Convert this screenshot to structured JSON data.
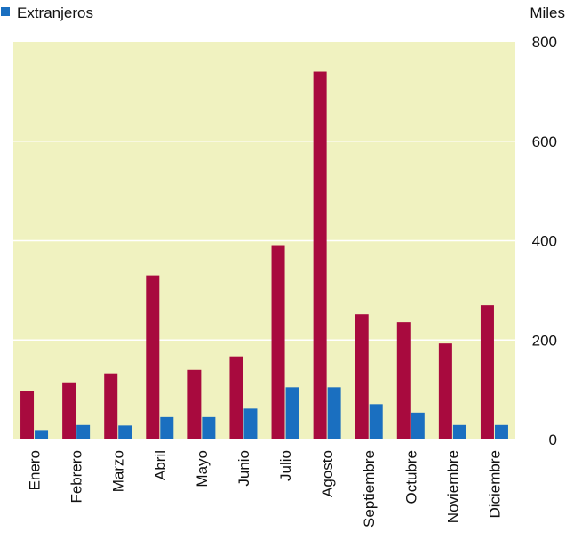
{
  "chart_data": {
    "type": "bar",
    "categories": [
      "Enero",
      "Febrero",
      "Marzo",
      "Abril",
      "Mayo",
      "Junio",
      "Julio",
      "Agosto",
      "Septiembre",
      "Octubre",
      "Noviembre",
      "Diciembre"
    ],
    "series": [
      {
        "values": [
          97,
          115,
          133,
          330,
          140,
          167,
          391,
          740,
          252,
          236,
          193,
          270
        ],
        "color": "#a80a3e"
      },
      {
        "name": "Extranjeros",
        "values": [
          19,
          29,
          28,
          45,
          45,
          62,
          105,
          105,
          71,
          54,
          29,
          29
        ],
        "color": "#1a6fc0"
      }
    ],
    "ylabel": "Miles",
    "ylim": [
      0,
      800
    ],
    "yticks": [
      0,
      200,
      400,
      600,
      800
    ],
    "grid": true,
    "legend": "top-left",
    "plot_background": "#f0f2c0",
    "grid_color": "#ffffff"
  }
}
